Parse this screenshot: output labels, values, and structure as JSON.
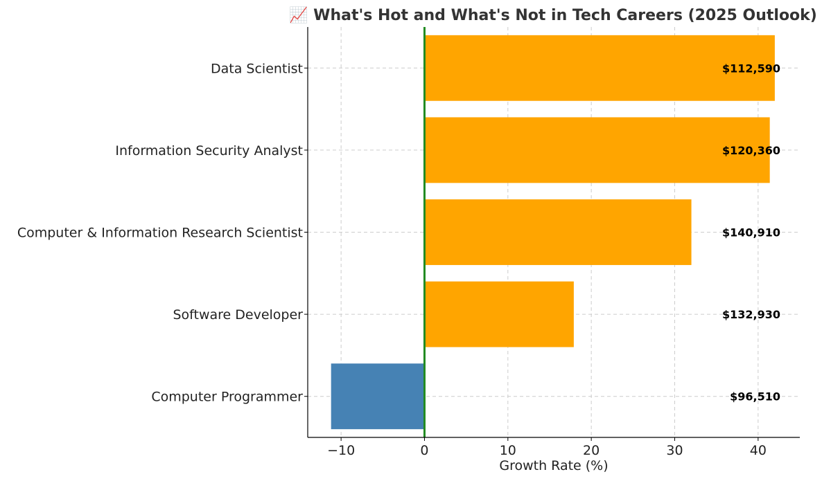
{
  "chart_data": {
    "type": "bar",
    "orientation": "horizontal",
    "title": "📈 What's Hot and What's Not in Tech Careers (2025 Outlook)",
    "xlabel": "Growth Rate (%)",
    "ylabel": "",
    "xlim": [
      -14,
      45
    ],
    "xticks": [
      -10,
      0,
      10,
      20,
      30,
      40
    ],
    "xtick_labels": [
      "−10",
      "0",
      "10",
      "20",
      "30",
      "40"
    ],
    "grid": true,
    "categories": [
      "Data Scientist",
      "Information Security Analyst",
      "Computer & Information Research Scientist",
      "Software Developer",
      "Computer Programmer"
    ],
    "values": [
      42,
      41.4,
      32,
      17.9,
      -11.2
    ],
    "salary_labels": [
      "$112,590",
      "$120,360",
      "$140,910",
      "$132,930",
      "$96,510"
    ],
    "colors": {
      "positive": "#FFA500",
      "negative": "#4682B4",
      "zero_line": "#228B22",
      "grid": "#cccccc",
      "title": "#333333"
    }
  }
}
